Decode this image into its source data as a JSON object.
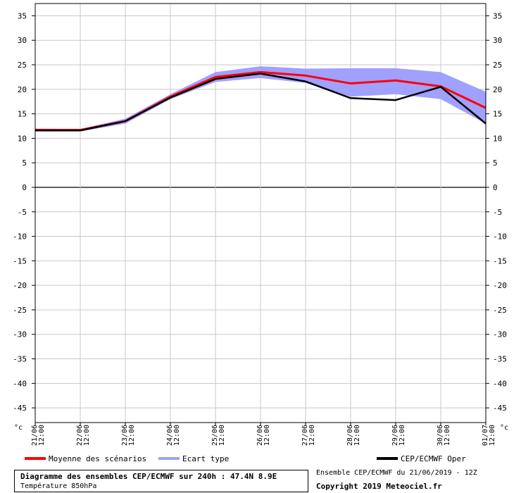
{
  "chart_data": {
    "type": "line",
    "unit_left": "°c",
    "unit_right": "°c",
    "y_ticks": [
      35,
      30,
      25,
      20,
      15,
      10,
      5,
      0,
      -5,
      -10,
      -15,
      -20,
      -25,
      -30,
      -35,
      -40,
      -45
    ],
    "ylim": [
      -48,
      37.5
    ],
    "x_ticks": [
      {
        "date": "21/06",
        "time": "12:00"
      },
      {
        "date": "22/06",
        "time": "12:00"
      },
      {
        "date": "23/06",
        "time": "12:00"
      },
      {
        "date": "24/06",
        "time": "12:00"
      },
      {
        "date": "25/06",
        "time": "12:00"
      },
      {
        "date": "26/06",
        "time": "12:00"
      },
      {
        "date": "27/06",
        "time": "12:00"
      },
      {
        "date": "28/06",
        "time": "12:00"
      },
      {
        "date": "29/06",
        "time": "12:00"
      },
      {
        "date": "30/06",
        "time": "12:00"
      },
      {
        "date": "01/07",
        "time": "12:00"
      }
    ],
    "grid": true,
    "zero_line": true,
    "series": [
      {
        "name": "Ecart type",
        "kind": "band",
        "color": "#a0a0ff",
        "upper": [
          12.0,
          11.9,
          14.0,
          19.0,
          23.5,
          24.7,
          24.2,
          24.3,
          24.3,
          23.5,
          19.5
        ],
        "lower": [
          11.4,
          11.4,
          13.0,
          18.0,
          21.5,
          22.3,
          21.3,
          18.5,
          19.0,
          18.0,
          13.0
        ]
      },
      {
        "name": "Moyenne des scénarios",
        "kind": "line",
        "color": "#ff0000",
        "values": [
          11.7,
          11.7,
          13.5,
          18.5,
          22.5,
          23.5,
          22.8,
          21.2,
          21.8,
          20.6,
          16.2
        ]
      },
      {
        "name": "CEP/ECMWF Oper",
        "kind": "line",
        "color": "#000000",
        "values": [
          11.6,
          11.6,
          13.5,
          18.3,
          22.1,
          23.2,
          21.6,
          18.2,
          17.8,
          20.5,
          13.0
        ]
      }
    ]
  },
  "legend": {
    "mean": "Moyenne des scénarios",
    "spread": "Ecart type",
    "oper": "CEP/ECMWF Oper"
  },
  "caption": {
    "title": "Diagramme des ensembles CEP/ECMWF sur 240h : 47.4N 8.9E",
    "subtitle": "Température 850hPa"
  },
  "run_info": "Ensemble CEP/ECMWF du 21/06/2019 - 12Z",
  "copyright": "Copyright 2019 Meteociel.fr"
}
